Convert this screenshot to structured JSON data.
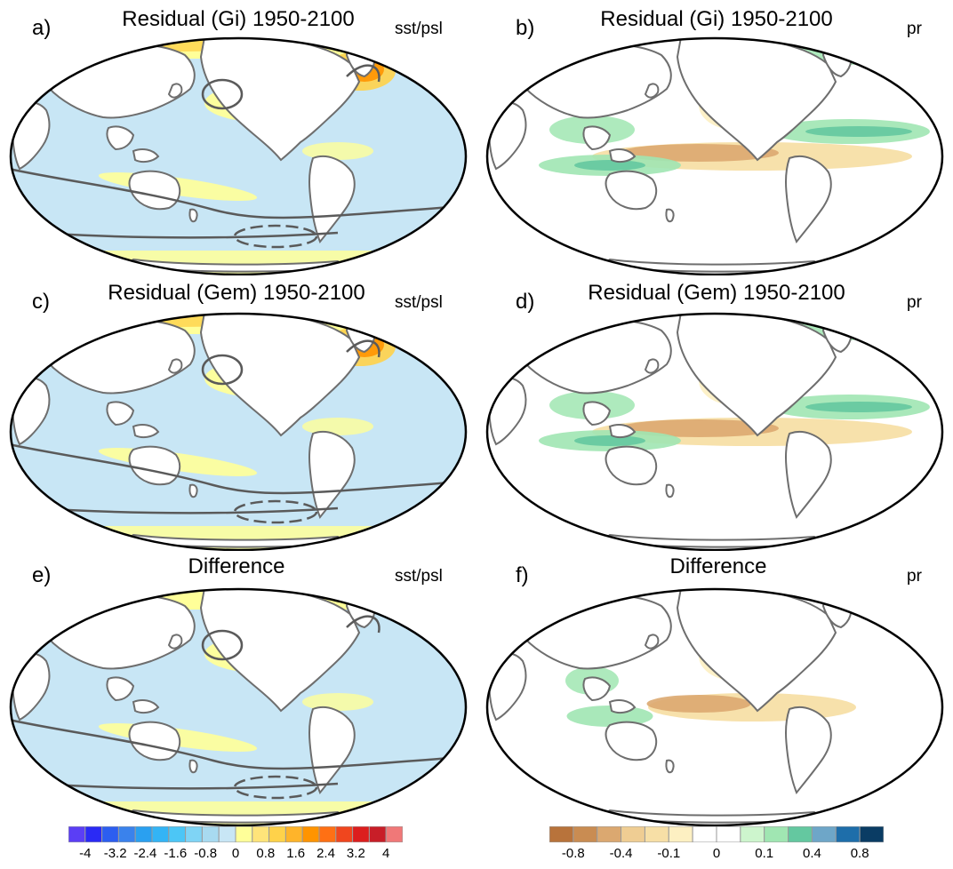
{
  "panels": [
    {
      "label": "a)",
      "title": "Residual (Gi) 1950-2100",
      "variable": "sst/psl",
      "kind": "sst"
    },
    {
      "label": "b)",
      "title": "Residual (Gi) 1950-2100",
      "variable": "pr",
      "kind": "pr"
    },
    {
      "label": "c)",
      "title": "Residual (Gem) 1950-2100",
      "variable": "sst/psl",
      "kind": "sst"
    },
    {
      "label": "d)",
      "title": "Residual (Gem) 1950-2100",
      "variable": "pr",
      "kind": "pr"
    },
    {
      "label": "e)",
      "title": "Difference",
      "variable": "sst/psl",
      "kind": "sst"
    },
    {
      "label": "f)",
      "title": "Difference",
      "variable": "pr",
      "kind": "pr"
    }
  ],
  "colorbars": {
    "sst": {
      "colors": [
        "#5b3ef5",
        "#2a2af5",
        "#2c5ef0",
        "#3a82ec",
        "#2aa0f0",
        "#33b4f5",
        "#4cc6f6",
        "#7fd4f5",
        "#a8daf0",
        "#c8e6f5",
        "#ffff99",
        "#ffe47a",
        "#ffd24a",
        "#ffb42a",
        "#ff9400",
        "#ff7014",
        "#f0461e",
        "#dc1e1e",
        "#c81e28",
        "#f07878"
      ],
      "ticks": [
        "-4",
        "-3.2",
        "-2.4",
        "-1.6",
        "-0.8",
        "0",
        "0.8",
        "1.6",
        "2.4",
        "3.2",
        "4"
      ]
    },
    "pr": {
      "colors": [
        "#b8733b",
        "#c98c52",
        "#dba870",
        "#efcd93",
        "#f7dfa6",
        "#fdf0c2",
        "#ffffff",
        "#ffffff",
        "#cdf5cd",
        "#a0e6b2",
        "#64c8a0",
        "#6ea6c8",
        "#1e6eaa",
        "#0a3c64"
      ],
      "ticks": [
        "-0.8",
        "-0.4",
        "-0.1",
        "0",
        "0.1",
        "0.4",
        "0.8"
      ]
    }
  }
}
